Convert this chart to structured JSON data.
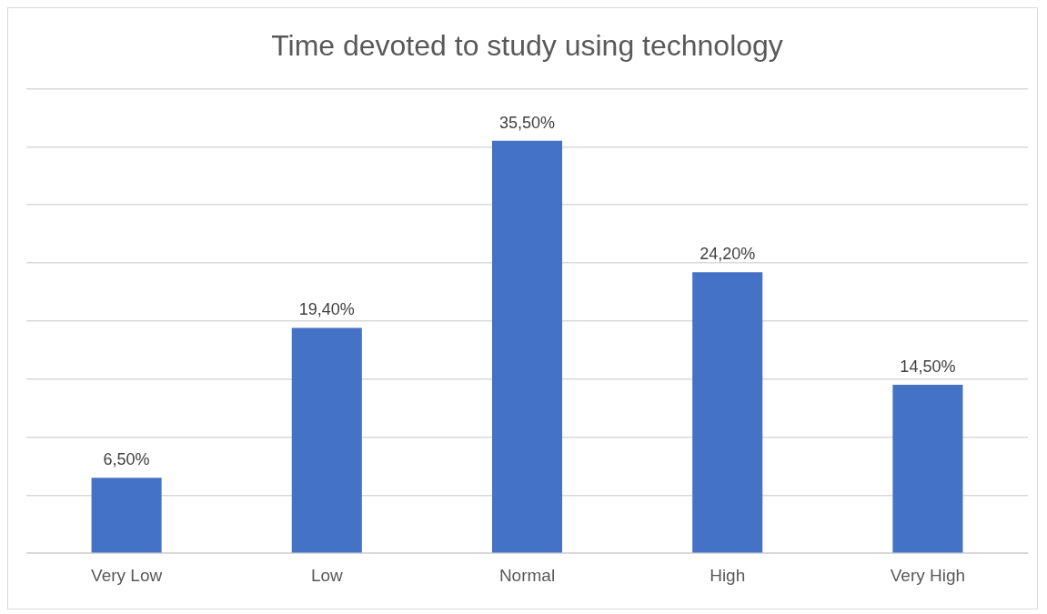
{
  "chart_data": {
    "type": "bar",
    "title": "Time devoted to study using technology",
    "categories": [
      "Very Low",
      "Low",
      "Normal",
      "High",
      "Very High"
    ],
    "values": [
      6.5,
      19.4,
      35.5,
      24.2,
      14.5
    ],
    "value_labels": [
      "6,50%",
      "19,40%",
      "35,50%",
      "24,20%",
      "14,50%"
    ],
    "color": "#4472c4",
    "ylim": [
      0,
      40
    ],
    "yticks": [
      {
        "value": 0,
        "label": null
      },
      {
        "value": 5,
        "label": null
      },
      {
        "value": 10,
        "label": null
      },
      {
        "value": 15,
        "label": null
      },
      {
        "value": 20,
        "label": null
      },
      {
        "value": 25,
        "label": null
      },
      {
        "value": 30,
        "label": null
      },
      {
        "value": 35,
        "label": null
      },
      {
        "value": 40,
        "label": null
      }
    ],
    "grid": "y",
    "tick_labels": "x",
    "legend": false
  }
}
